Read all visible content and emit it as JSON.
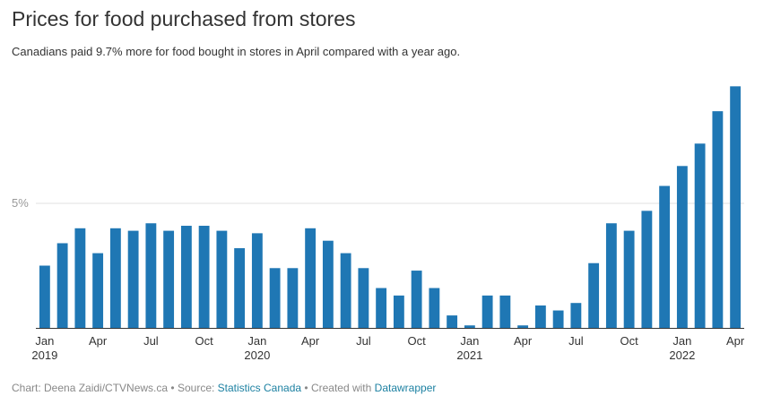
{
  "title": "Prices for food purchased from stores",
  "subtitle": "Canadians paid 9.7% more for food bought in stores in April compared with a year ago.",
  "footer": {
    "chart_credit": "Chart: Deena Zaidi/CTVNews.ca",
    "separator1": "•",
    "source_prefix": "Source:",
    "source_link": "Statistics Canada",
    "separator2": "•",
    "created_prefix": "Created with",
    "created_link": "Datawrapper"
  },
  "colors": {
    "bar": "#1f77b4",
    "grid": "#e0e0e0",
    "axis": "#333333",
    "tick_text": "#333333",
    "link": "#1d81a2"
  },
  "chart_data": {
    "type": "bar",
    "title": "Prices for food purchased from stores",
    "xlabel": "",
    "ylabel": "",
    "ylim": [
      0,
      10
    ],
    "grid": true,
    "y_ticks": [
      {
        "value": 5,
        "label": "5%"
      }
    ],
    "categories": [
      "Jan 2019",
      "Feb 2019",
      "Mar 2019",
      "Apr 2019",
      "May 2019",
      "Jun 2019",
      "Jul 2019",
      "Aug 2019",
      "Sep 2019",
      "Oct 2019",
      "Nov 2019",
      "Dec 2019",
      "Jan 2020",
      "Feb 2020",
      "Mar 2020",
      "Apr 2020",
      "May 2020",
      "Jun 2020",
      "Jul 2020",
      "Aug 2020",
      "Sep 2020",
      "Oct 2020",
      "Nov 2020",
      "Dec 2020",
      "Jan 2021",
      "Feb 2021",
      "Mar 2021",
      "Apr 2021",
      "May 2021",
      "Jun 2021",
      "Jul 2021",
      "Aug 2021",
      "Sep 2021",
      "Oct 2021",
      "Nov 2021",
      "Dec 2021",
      "Jan 2022",
      "Feb 2022",
      "Mar 2022",
      "Apr 2022"
    ],
    "values": [
      2.5,
      3.4,
      4.0,
      3.0,
      4.0,
      3.9,
      4.2,
      3.9,
      4.1,
      4.1,
      3.9,
      3.2,
      3.8,
      2.4,
      2.4,
      4.0,
      3.5,
      3.0,
      2.4,
      1.6,
      1.3,
      2.3,
      1.6,
      0.5,
      0.1,
      1.3,
      1.3,
      0.1,
      0.9,
      0.7,
      1.0,
      2.6,
      4.2,
      3.9,
      4.7,
      5.7,
      6.5,
      7.4,
      8.7,
      9.7
    ],
    "x_ticks": [
      {
        "index": 0,
        "label": "Jan",
        "year": "2019"
      },
      {
        "index": 3,
        "label": "Apr"
      },
      {
        "index": 6,
        "label": "Jul"
      },
      {
        "index": 9,
        "label": "Oct"
      },
      {
        "index": 12,
        "label": "Jan",
        "year": "2020"
      },
      {
        "index": 15,
        "label": "Apr"
      },
      {
        "index": 18,
        "label": "Jul"
      },
      {
        "index": 21,
        "label": "Oct"
      },
      {
        "index": 24,
        "label": "Jan",
        "year": "2021"
      },
      {
        "index": 27,
        "label": "Apr"
      },
      {
        "index": 30,
        "label": "Jul"
      },
      {
        "index": 33,
        "label": "Oct"
      },
      {
        "index": 36,
        "label": "Jan",
        "year": "2022"
      },
      {
        "index": 39,
        "label": "Apr"
      }
    ]
  }
}
